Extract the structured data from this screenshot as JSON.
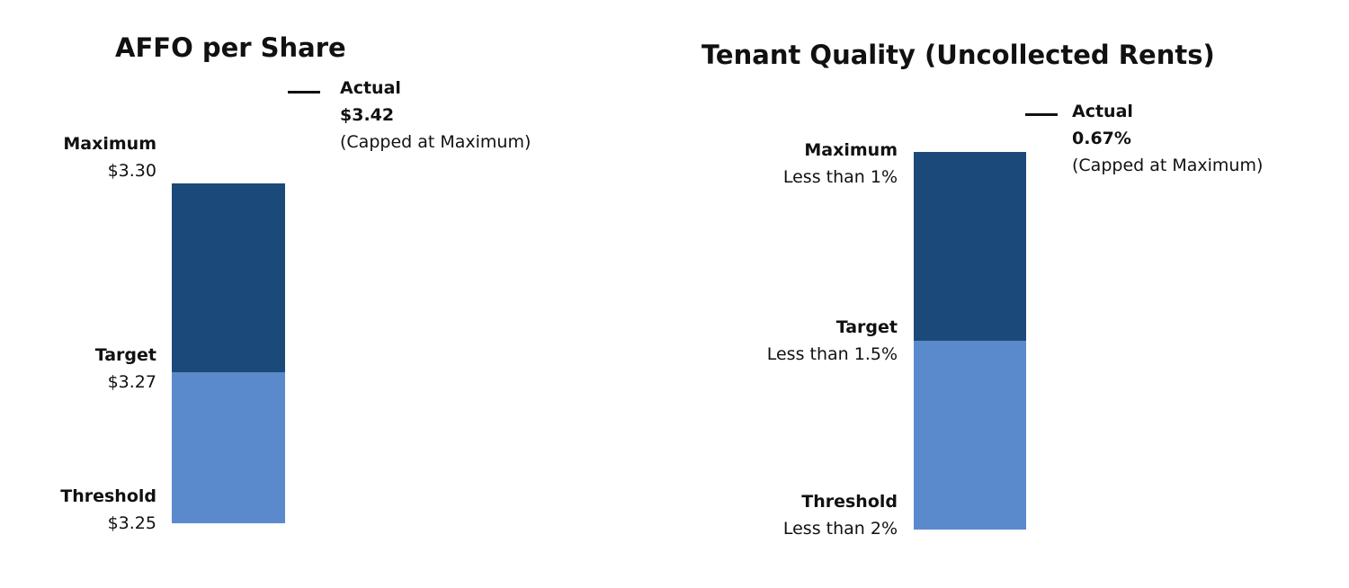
{
  "colors": {
    "lower_band": "#5a8acb",
    "upper_band": "#1b497a",
    "marker": "#111111"
  },
  "chart_data": [
    {
      "type": "bar",
      "title": "AFFO per Share",
      "levels": [
        {
          "name": "Maximum",
          "value_label": "$3.30",
          "value": 3.3
        },
        {
          "name": "Target",
          "value_label": "$3.27",
          "value": 3.27
        },
        {
          "name": "Threshold",
          "value_label": "$3.25",
          "value": 3.25
        }
      ],
      "actual": {
        "label": "Actual",
        "value_label": "$3.42",
        "value": 3.42,
        "note": "(Capped at Maximum)"
      }
    },
    {
      "type": "bar",
      "title": "Tenant Quality  (Uncollected Rents)",
      "levels": [
        {
          "name": "Maximum",
          "value_label": "Less than 1%",
          "value": 1.0
        },
        {
          "name": "Target",
          "value_label": "Less than 1.5%",
          "value": 1.5
        },
        {
          "name": "Threshold",
          "value_label": "Less than 2%",
          "value": 2.0
        }
      ],
      "actual": {
        "label": "Actual",
        "value_label": "0.67%",
        "value": 0.67,
        "note": "(Capped at Maximum)"
      }
    }
  ]
}
